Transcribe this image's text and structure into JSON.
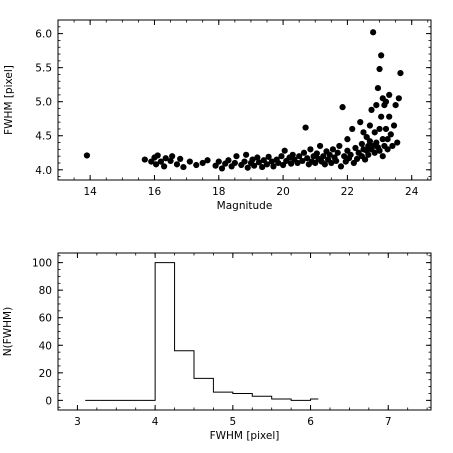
{
  "chart_data": [
    {
      "type": "scatter",
      "xlabel": "Magnitude",
      "ylabel": "FWHM [pixel]",
      "xlim": [
        13,
        24.6
      ],
      "ylim": [
        3.85,
        6.2
      ],
      "xticks": [
        14,
        16,
        18,
        20,
        22,
        24
      ],
      "yticks": [
        4.0,
        4.5,
        5.0,
        5.5,
        6.0
      ],
      "xtick_labels": [
        "14",
        "16",
        "18",
        "20",
        "22",
        "24"
      ],
      "ytick_labels": [
        "4.0",
        "4.5",
        "5.0",
        "5.5",
        "6.0"
      ],
      "marker_color": "#000000",
      "points": [
        [
          13.9,
          4.21
        ],
        [
          15.7,
          4.15
        ],
        [
          15.9,
          4.12
        ],
        [
          16.0,
          4.18
        ],
        [
          16.05,
          4.08
        ],
        [
          16.1,
          4.21
        ],
        [
          16.2,
          4.12
        ],
        [
          16.3,
          4.05
        ],
        [
          16.35,
          4.17
        ],
        [
          16.5,
          4.13
        ],
        [
          16.55,
          4.2
        ],
        [
          16.7,
          4.08
        ],
        [
          16.8,
          4.16
        ],
        [
          16.9,
          4.04
        ],
        [
          17.1,
          4.12
        ],
        [
          17.3,
          4.07
        ],
        [
          17.5,
          4.1
        ],
        [
          17.65,
          4.14
        ],
        [
          17.9,
          4.06
        ],
        [
          18.0,
          4.12
        ],
        [
          18.1,
          4.02
        ],
        [
          18.2,
          4.09
        ],
        [
          18.3,
          4.14
        ],
        [
          18.4,
          4.05
        ],
        [
          18.5,
          4.1
        ],
        [
          18.55,
          4.2
        ],
        [
          18.7,
          4.07
        ],
        [
          18.8,
          4.12
        ],
        [
          18.85,
          4.22
        ],
        [
          18.9,
          4.03
        ],
        [
          19.0,
          4.1
        ],
        [
          19.05,
          4.15
        ],
        [
          19.1,
          4.06
        ],
        [
          19.2,
          4.18
        ],
        [
          19.25,
          4.11
        ],
        [
          19.35,
          4.04
        ],
        [
          19.4,
          4.14
        ],
        [
          19.5,
          4.08
        ],
        [
          19.55,
          4.19
        ],
        [
          19.65,
          4.12
        ],
        [
          19.7,
          4.05
        ],
        [
          19.8,
          4.15
        ],
        [
          19.85,
          4.1
        ],
        [
          19.95,
          4.2
        ],
        [
          20.0,
          4.07
        ],
        [
          20.05,
          4.28
        ],
        [
          20.1,
          4.13
        ],
        [
          20.2,
          4.18
        ],
        [
          20.25,
          4.09
        ],
        [
          20.3,
          4.22
        ],
        [
          20.35,
          4.15
        ],
        [
          20.45,
          4.1
        ],
        [
          20.5,
          4.2
        ],
        [
          20.6,
          4.13
        ],
        [
          20.65,
          4.25
        ],
        [
          20.7,
          4.62
        ],
        [
          20.75,
          4.17
        ],
        [
          20.8,
          4.08
        ],
        [
          20.85,
          4.3
        ],
        [
          20.9,
          4.12
        ],
        [
          20.95,
          4.2
        ],
        [
          21.0,
          4.1
        ],
        [
          21.05,
          4.24
        ],
        [
          21.1,
          4.16
        ],
        [
          21.15,
          4.35
        ],
        [
          21.2,
          4.12
        ],
        [
          21.25,
          4.2
        ],
        [
          21.3,
          4.08
        ],
        [
          21.35,
          4.27
        ],
        [
          21.4,
          4.15
        ],
        [
          21.45,
          4.22
        ],
        [
          21.5,
          4.1
        ],
        [
          21.55,
          4.3
        ],
        [
          21.6,
          4.18
        ],
        [
          21.65,
          4.13
        ],
        [
          21.7,
          4.25
        ],
        [
          21.75,
          4.35
        ],
        [
          21.8,
          4.05
        ],
        [
          21.85,
          4.92
        ],
        [
          21.9,
          4.2
        ],
        [
          21.95,
          4.12
        ],
        [
          22.0,
          4.28
        ],
        [
          22.0,
          4.45
        ],
        [
          22.05,
          4.17
        ],
        [
          22.1,
          4.22
        ],
        [
          22.15,
          4.6
        ],
        [
          22.2,
          4.1
        ],
        [
          22.25,
          4.32
        ],
        [
          22.3,
          4.16
        ],
        [
          22.35,
          4.25
        ],
        [
          22.4,
          4.7
        ],
        [
          22.45,
          4.2
        ],
        [
          22.45,
          4.38
        ],
        [
          22.5,
          4.3
        ],
        [
          22.5,
          4.55
        ],
        [
          22.55,
          4.15
        ],
        [
          22.6,
          4.28
        ],
        [
          22.6,
          4.48
        ],
        [
          22.65,
          4.35
        ],
        [
          22.65,
          4.22
        ],
        [
          22.7,
          4.65
        ],
        [
          22.7,
          4.42
        ],
        [
          22.75,
          4.3
        ],
        [
          22.75,
          4.88
        ],
        [
          22.8,
          6.02
        ],
        [
          22.8,
          4.35
        ],
        [
          22.85,
          4.55
        ],
        [
          22.85,
          4.25
        ],
        [
          22.9,
          4.95
        ],
        [
          22.9,
          4.4
        ],
        [
          22.95,
          5.2
        ],
        [
          22.95,
          4.33
        ],
        [
          23.0,
          5.48
        ],
        [
          23.0,
          4.6
        ],
        [
          23.0,
          4.28
        ],
        [
          23.05,
          5.68
        ],
        [
          23.05,
          4.78
        ],
        [
          23.1,
          5.05
        ],
        [
          23.1,
          4.45
        ],
        [
          23.1,
          4.2
        ],
        [
          23.15,
          4.95
        ],
        [
          23.15,
          4.35
        ],
        [
          23.2,
          5.0
        ],
        [
          23.2,
          4.6
        ],
        [
          23.25,
          4.45
        ],
        [
          23.25,
          4.3
        ],
        [
          23.3,
          4.78
        ],
        [
          23.3,
          5.1
        ],
        [
          23.35,
          4.52
        ],
        [
          23.4,
          4.35
        ],
        [
          23.45,
          4.65
        ],
        [
          23.5,
          4.95
        ],
        [
          23.55,
          4.4
        ],
        [
          23.6,
          5.05
        ],
        [
          23.65,
          5.42
        ]
      ]
    },
    {
      "type": "histogram",
      "xlabel": "FWHM [pixel]",
      "ylabel": "N(FWHM)",
      "xlim": [
        2.75,
        7.55
      ],
      "ylim": [
        -7,
        107
      ],
      "xticks": [
        3,
        4,
        5,
        6,
        7
      ],
      "yticks": [
        0,
        20,
        40,
        60,
        80,
        100
      ],
      "xtick_labels": [
        "3",
        "4",
        "5",
        "6",
        "7"
      ],
      "ytick_labels": [
        "0",
        "20",
        "40",
        "60",
        "80",
        "100"
      ],
      "bin_edges": [
        3.1,
        4.0,
        4.25,
        4.5,
        4.75,
        5.0,
        5.25,
        5.5,
        5.75,
        6.0,
        6.1
      ],
      "counts": [
        0,
        100,
        36,
        16,
        6,
        5,
        3,
        1,
        0,
        1
      ]
    }
  ]
}
